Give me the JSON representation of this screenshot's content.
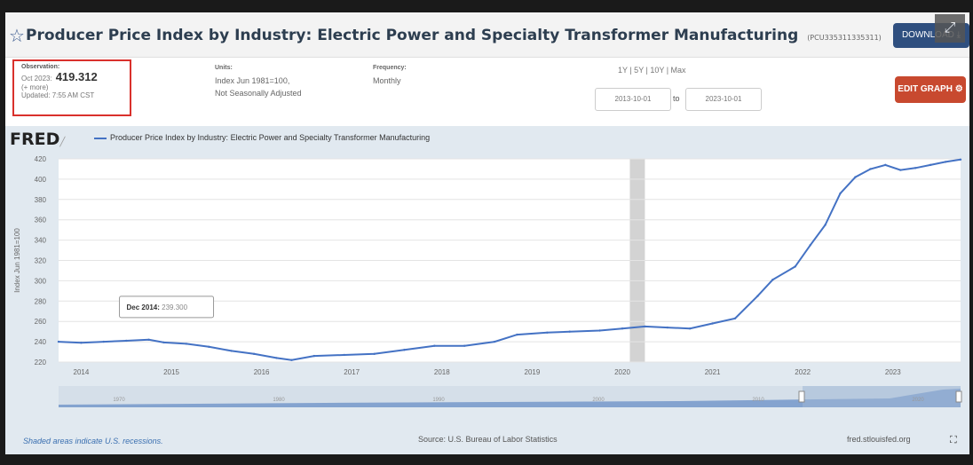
{
  "header": {
    "title": "Producer Price Index by Industry: Electric Power and Specialty Transformer Manufacturing",
    "series_id": "(PCU335311335311)",
    "download_label": "DOWNLOAD"
  },
  "observation": {
    "label": "Observation:",
    "date": "Oct 2023:",
    "value": "419.312",
    "more": "(+ more)",
    "updated": "Updated: 7:55 AM CST"
  },
  "units": {
    "label": "Units:",
    "line1": "Index Jun 1981=100,",
    "line2": "Not Seasonally Adjusted"
  },
  "frequency": {
    "label": "Frequency:",
    "value": "Monthly"
  },
  "range": {
    "options": "1Y | 5Y | 10Y | Max",
    "start": "2013-10-01",
    "to_label": "to",
    "end": "2023-10-01"
  },
  "edit_graph_label": "EDIT GRAPH",
  "legend_label": "Producer Price Index by Industry: Electric Power and Specialty Transformer Manufacturing",
  "tooltip": {
    "date": "Dec 2014:",
    "value": "239.300"
  },
  "footer": {
    "recession_note": "Shaded areas indicate U.S. recessions.",
    "source": "Source: U.S. Bureau of Labor Statistics",
    "site": "fred.stlouisfed.org"
  },
  "colors": {
    "line": "#4472c4",
    "recession": "#d3d3d3",
    "plot_bg": "#ffffff",
    "frame_bg": "#e1e9f0"
  },
  "chart_data": {
    "type": "line",
    "ylabel": "Index Jun 1981=100",
    "ylim": [
      220,
      420
    ],
    "yticks": [
      220,
      240,
      260,
      280,
      300,
      320,
      340,
      360,
      380,
      400,
      420
    ],
    "xticks": [
      "2014",
      "2015",
      "2016",
      "2017",
      "2018",
      "2019",
      "2020",
      "2021",
      "2022",
      "2023"
    ],
    "xrange": [
      "2013-10",
      "2023-10"
    ],
    "recession": [
      "2020-02",
      "2020-04"
    ],
    "series": [
      {
        "values": [
          [
            "2013-10",
            240
          ],
          [
            "2014-01",
            239
          ],
          [
            "2014-04",
            240
          ],
          [
            "2014-07",
            241
          ],
          [
            "2014-10",
            242
          ],
          [
            "2014-12",
            239.3
          ],
          [
            "2015-03",
            238
          ],
          [
            "2015-06",
            235
          ],
          [
            "2015-09",
            231
          ],
          [
            "2015-12",
            228
          ],
          [
            "2016-03",
            224
          ],
          [
            "2016-05",
            222
          ],
          [
            "2016-08",
            226
          ],
          [
            "2016-12",
            227
          ],
          [
            "2017-04",
            228
          ],
          [
            "2017-08",
            232
          ],
          [
            "2017-12",
            236
          ],
          [
            "2018-04",
            236
          ],
          [
            "2018-08",
            240
          ],
          [
            "2018-11",
            247
          ],
          [
            "2019-03",
            249
          ],
          [
            "2019-06",
            250
          ],
          [
            "2019-10",
            251
          ],
          [
            "2020-01",
            253
          ],
          [
            "2020-04",
            255
          ],
          [
            "2020-07",
            254
          ],
          [
            "2020-10",
            253
          ],
          [
            "2021-01",
            258
          ],
          [
            "2021-04",
            263
          ],
          [
            "2021-07",
            285
          ],
          [
            "2021-09",
            301
          ],
          [
            "2021-12",
            314
          ],
          [
            "2022-02",
            335
          ],
          [
            "2022-04",
            355
          ],
          [
            "2022-06",
            386
          ],
          [
            "2022-08",
            402
          ],
          [
            "2022-10",
            410
          ],
          [
            "2022-12",
            414
          ],
          [
            "2023-02",
            409
          ],
          [
            "2023-04",
            411
          ],
          [
            "2023-06",
            414
          ],
          [
            "2023-08",
            417
          ],
          [
            "2023-10",
            419.312
          ]
        ]
      }
    ],
    "navigator_labels": [
      "1970",
      "1980",
      "1990",
      "2000",
      "2010",
      "2020"
    ]
  }
}
